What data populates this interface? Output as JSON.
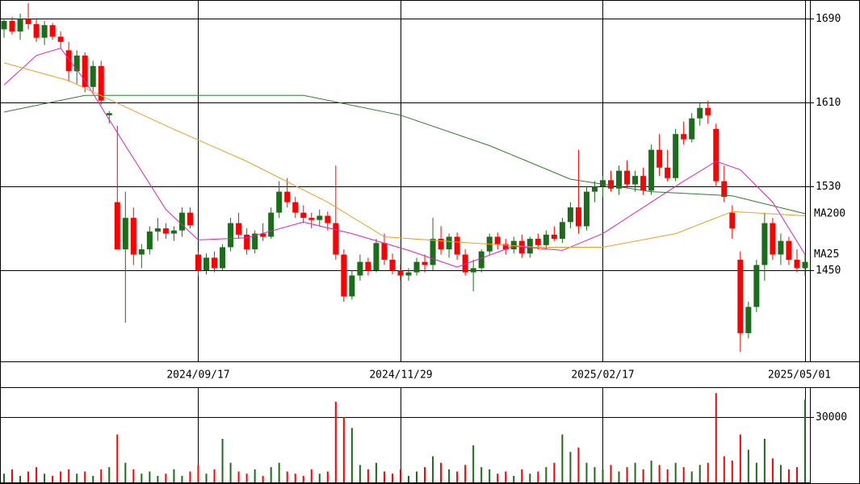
{
  "chart_data": [
    {
      "type": "candlestick",
      "categories": [
        null,
        null,
        null,
        null,
        null,
        null,
        null,
        null,
        null,
        null,
        null,
        null,
        null,
        null,
        null,
        null,
        null,
        null,
        null,
        null,
        null,
        null,
        null,
        null,
        "2024/09/17",
        null,
        null,
        null,
        null,
        null,
        null,
        null,
        null,
        null,
        null,
        null,
        null,
        null,
        null,
        null,
        null,
        null,
        null,
        null,
        null,
        null,
        null,
        null,
        null,
        "2024/11/29",
        null,
        null,
        null,
        null,
        null,
        null,
        null,
        null,
        null,
        null,
        null,
        null,
        null,
        null,
        null,
        null,
        null,
        null,
        null,
        null,
        null,
        null,
        null,
        null,
        "2025/02/17",
        null,
        null,
        null,
        null,
        null,
        null,
        null,
        null,
        null,
        null,
        null,
        null,
        null,
        null,
        null,
        null,
        null,
        null,
        null,
        null,
        null,
        null,
        null,
        null,
        "2025/05/01"
      ],
      "open": [
        1680,
        1688,
        1678,
        1690,
        1685,
        1672,
        1684,
        1673,
        1660,
        1640,
        1655,
        1625,
        1645,
        1598,
        1515,
        1470,
        1500,
        1465,
        1470,
        1487,
        1490,
        1485,
        1488,
        1505,
        1465,
        1450,
        1462,
        1452,
        1472,
        1495,
        1484,
        1470,
        1485,
        1482,
        1505,
        1525,
        1515,
        1505,
        1500,
        1498,
        1502,
        1495,
        1465,
        1425,
        1445,
        1458,
        1450,
        1476,
        1460,
        1450,
        1445,
        1448,
        1458,
        1455,
        1480,
        1470,
        1482,
        1465,
        1448,
        1452,
        1468,
        1482,
        1475,
        1470,
        1478,
        1466,
        1480,
        1474,
        1484,
        1480,
        1496,
        1510,
        1492,
        1525,
        1530,
        1536,
        1528,
        1545,
        1532,
        1540,
        1526,
        1565,
        1548,
        1538,
        1580,
        1575,
        1595,
        1605,
        1585,
        1535,
        1505,
        1460,
        1390,
        1415,
        1455,
        1495,
        1465,
        1478,
        1460,
        1452
      ],
      "high": [
        1690,
        1692,
        1695,
        1705,
        1690,
        1688,
        1686,
        1678,
        1668,
        1660,
        1658,
        1650,
        1650,
        1602,
        1588,
        1525,
        1510,
        1475,
        1492,
        1500,
        1495,
        1492,
        1510,
        1510,
        1468,
        1466,
        1468,
        1475,
        1500,
        1505,
        1490,
        1488,
        1495,
        1510,
        1535,
        1538,
        1520,
        1512,
        1505,
        1508,
        1506,
        1550,
        1470,
        1450,
        1465,
        1462,
        1480,
        1485,
        1466,
        1456,
        1452,
        1462,
        1465,
        1500,
        1492,
        1485,
        1486,
        1470,
        1460,
        1470,
        1485,
        1486,
        1480,
        1482,
        1484,
        1482,
        1485,
        1488,
        1492,
        1500,
        1515,
        1565,
        1530,
        1535,
        1540,
        1545,
        1550,
        1555,
        1545,
        1548,
        1570,
        1580,
        1565,
        1585,
        1592,
        1600,
        1610,
        1612,
        1590,
        1550,
        1512,
        1468,
        1420,
        1460,
        1505,
        1500,
        1485,
        1482,
        1470,
        1465
      ],
      "low": [
        1672,
        1675,
        1670,
        1680,
        1668,
        1665,
        1670,
        1662,
        1630,
        1628,
        1620,
        1620,
        1608,
        1590,
        1470,
        1400,
        1455,
        1452,
        1465,
        1478,
        1480,
        1478,
        1482,
        1490,
        1445,
        1446,
        1448,
        1450,
        1468,
        1480,
        1465,
        1466,
        1478,
        1480,
        1500,
        1510,
        1500,
        1495,
        1490,
        1492,
        1488,
        1460,
        1420,
        1422,
        1440,
        1445,
        1448,
        1455,
        1446,
        1440,
        1440,
        1445,
        1448,
        1450,
        1465,
        1462,
        1460,
        1445,
        1430,
        1448,
        1465,
        1470,
        1465,
        1466,
        1462,
        1462,
        1470,
        1470,
        1478,
        1476,
        1490,
        1485,
        1488,
        1515,
        1520,
        1525,
        1522,
        1528,
        1525,
        1522,
        1522,
        1540,
        1535,
        1535,
        1570,
        1572,
        1588,
        1590,
        1530,
        1515,
        1480,
        1372,
        1385,
        1410,
        1440,
        1460,
        1455,
        1455,
        1448,
        1445
      ],
      "close": [
        1688,
        1678,
        1690,
        1685,
        1672,
        1684,
        1673,
        1668,
        1640,
        1655,
        1625,
        1645,
        1612,
        1600,
        1470,
        1500,
        1465,
        1470,
        1487,
        1490,
        1485,
        1488,
        1505,
        1493,
        1450,
        1462,
        1452,
        1472,
        1495,
        1484,
        1470,
        1485,
        1482,
        1505,
        1525,
        1515,
        1505,
        1500,
        1498,
        1502,
        1495,
        1465,
        1425,
        1445,
        1458,
        1450,
        1476,
        1460,
        1450,
        1445,
        1448,
        1458,
        1455,
        1480,
        1470,
        1482,
        1465,
        1448,
        1452,
        1468,
        1482,
        1475,
        1470,
        1478,
        1466,
        1480,
        1474,
        1484,
        1480,
        1496,
        1510,
        1492,
        1525,
        1530,
        1536,
        1528,
        1545,
        1532,
        1540,
        1526,
        1565,
        1548,
        1538,
        1580,
        1575,
        1595,
        1605,
        1598,
        1535,
        1520,
        1490,
        1390,
        1415,
        1455,
        1495,
        1465,
        1478,
        1460,
        1452,
        1458
      ],
      "up_color": "#1a6e1a",
      "down_color": "#ff0000",
      "ylim": [
        1363,
        1708
      ],
      "yticks": [
        1450,
        1530,
        1610,
        1690
      ],
      "grid": true,
      "lines": [
        {
          "name": "MA200",
          "color": "#2e7d2e",
          "x": [
            0,
            10,
            37,
            49,
            60,
            70,
            80,
            90,
            99
          ],
          "values": [
            1601,
            1617,
            1617,
            1598,
            1569,
            1537,
            1525,
            1521,
            1504
          ]
        },
        {
          "name": "MA25",
          "color": "#e020c0",
          "x": [
            0,
            4,
            7,
            10,
            15,
            20,
            24,
            30,
            37,
            43,
            50,
            56,
            63,
            69,
            74,
            80,
            84,
            88,
            91,
            95,
            99
          ],
          "values": [
            1627,
            1655,
            1662,
            1631,
            1569,
            1508,
            1479,
            1481,
            1496,
            1485,
            1469,
            1453,
            1473,
            1469,
            1485,
            1515,
            1535,
            1554,
            1546,
            1515,
            1465
          ]
        },
        {
          "color": "#f0a020",
          "x": [
            0,
            8,
            20,
            30,
            40,
            47,
            56,
            66,
            74,
            83,
            90,
            99
          ],
          "values": [
            1648,
            1631,
            1588,
            1554,
            1515,
            1482,
            1477,
            1472,
            1472,
            1485,
            1506,
            1502
          ]
        }
      ]
    },
    {
      "type": "bar",
      "values": [
        4000,
        6000,
        3000,
        5000,
        7000,
        4000,
        3000,
        5000,
        6000,
        4000,
        5000,
        3000,
        6000,
        7000,
        22000,
        9000,
        6000,
        4000,
        5000,
        3000,
        4000,
        6000,
        3000,
        5000,
        8000,
        4000,
        6000,
        20000,
        9000,
        5000,
        4000,
        6000,
        3000,
        7000,
        9000,
        5000,
        4000,
        3000,
        6000,
        4000,
        5000,
        37000,
        30000,
        25000,
        8000,
        6000,
        9000,
        5000,
        4000,
        6000,
        3000,
        5000,
        7000,
        12000,
        9000,
        6000,
        5000,
        8000,
        17000,
        7000,
        6000,
        4000,
        5000,
        3000,
        6000,
        4000,
        5000,
        7000,
        9000,
        22000,
        14000,
        16000,
        9000,
        7000,
        6000,
        8000,
        5000,
        7000,
        9000,
        6000,
        10000,
        8000,
        6000,
        9000,
        7000,
        5000,
        8000,
        9000,
        41000,
        12000,
        10000,
        22000,
        15000,
        9000,
        20000,
        11000,
        8000,
        6000,
        7000,
        38000
      ],
      "ylim": [
        0,
        43700
      ],
      "yticks": [
        30000
      ],
      "grid": true
    }
  ]
}
